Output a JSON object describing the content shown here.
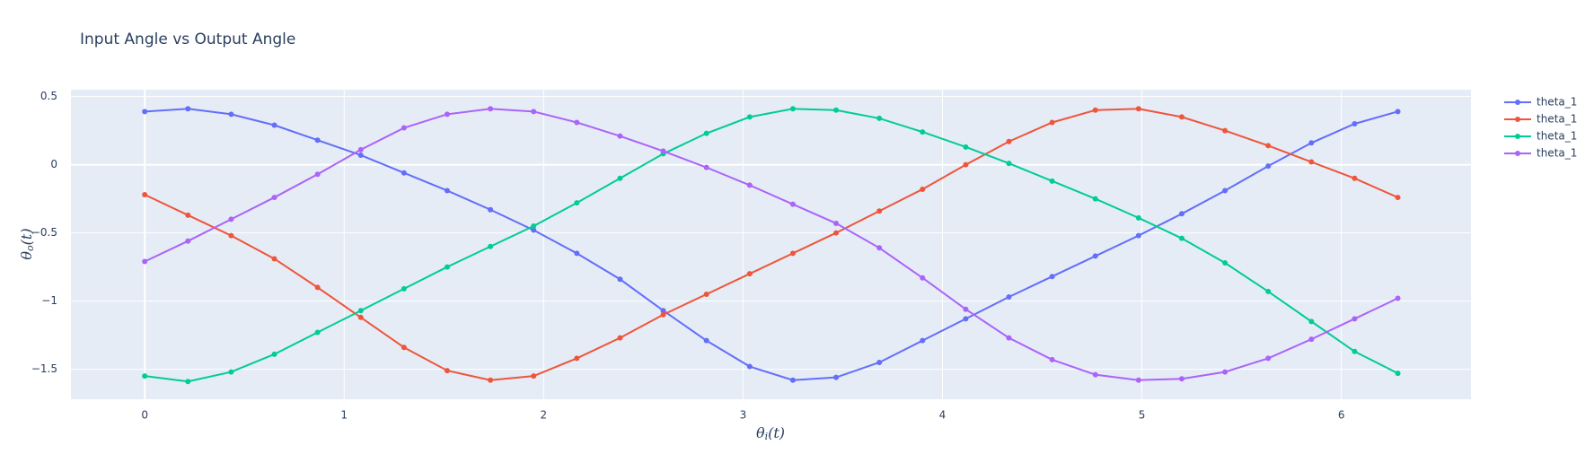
{
  "chart_data": {
    "type": "line",
    "title": "Input Angle vs Output Angle",
    "x_label": {
      "symbol": "θ",
      "sub": "i",
      "arg": "(t)"
    },
    "y_label": {
      "symbol": "θ",
      "sub": "o",
      "arg": "(t)"
    },
    "x": [
      0,
      0.2167,
      0.4333,
      0.65,
      0.8666,
      1.0833,
      1.3,
      1.5166,
      1.7333,
      1.95,
      2.1666,
      2.3833,
      2.5999,
      2.8166,
      3.0333,
      3.2499,
      3.4666,
      3.6833,
      3.8999,
      4.1166,
      4.3332,
      4.5499,
      4.7666,
      4.9832,
      5.1999,
      5.4166,
      5.6332,
      5.8499,
      6.0665,
      6.2832
    ],
    "series": [
      {
        "name": "theta_1",
        "color": "#636efa",
        "values": [
          0.39,
          0.41,
          0.37,
          0.29,
          0.18,
          0.07,
          -0.06,
          -0.19,
          -0.33,
          -0.48,
          -0.65,
          -0.84,
          -1.07,
          -1.29,
          -1.48,
          -1.58,
          -1.56,
          -1.45,
          -1.29,
          -1.13,
          -0.97,
          -0.82,
          -0.67,
          -0.52,
          -0.36,
          -0.19,
          -0.01,
          0.16,
          0.3,
          0.39
        ]
      },
      {
        "name": "theta_1",
        "color": "#ef553b",
        "values": [
          -0.22,
          -0.37,
          -0.52,
          -0.69,
          -0.9,
          -1.12,
          -1.34,
          -1.51,
          -1.58,
          -1.55,
          -1.42,
          -1.27,
          -1.1,
          -0.95,
          -0.8,
          -0.65,
          -0.5,
          -0.34,
          -0.18,
          0,
          0.17,
          0.31,
          0.4,
          0.41,
          0.35,
          0.25,
          0.14,
          0.02,
          -0.1,
          -0.24
        ]
      },
      {
        "name": "theta_1",
        "color": "#00cc96",
        "values": [
          -1.55,
          -1.59,
          -1.52,
          -1.39,
          -1.23,
          -1.07,
          -0.91,
          -0.75,
          -0.6,
          -0.45,
          -0.28,
          -0.1,
          0.08,
          0.23,
          0.35,
          0.41,
          0.4,
          0.34,
          0.24,
          0.13,
          0.01,
          -0.12,
          -0.25,
          -0.39,
          -0.54,
          -0.72,
          -0.93,
          -1.15,
          -1.37,
          -1.53
        ]
      },
      {
        "name": "theta_1",
        "color": "#ab63fa",
        "values": [
          -0.71,
          -0.56,
          -0.4,
          -0.24,
          -0.07,
          0.11,
          0.27,
          0.37,
          0.41,
          0.39,
          0.31,
          0.21,
          0.1,
          -0.02,
          -0.15,
          -0.29,
          -0.43,
          -0.61,
          -0.83,
          -1.06,
          -1.27,
          -1.43,
          -1.54,
          -1.58,
          -1.57,
          -1.52,
          -1.42,
          -1.28,
          -1.13,
          -0.98
        ]
      }
    ],
    "xlim": [
      -0.37,
      6.65
    ],
    "ylim": [
      -1.72,
      0.55
    ],
    "xticks": [
      0,
      1,
      2,
      3,
      4,
      5,
      6
    ],
    "yticks": [
      {
        "value": -1.5,
        "label": "−1.5"
      },
      {
        "value": -1,
        "label": "−1"
      },
      {
        "value": -0.5,
        "label": "−0.5"
      },
      0,
      0.5
    ],
    "grid": true,
    "markers": true,
    "legend": "right"
  }
}
